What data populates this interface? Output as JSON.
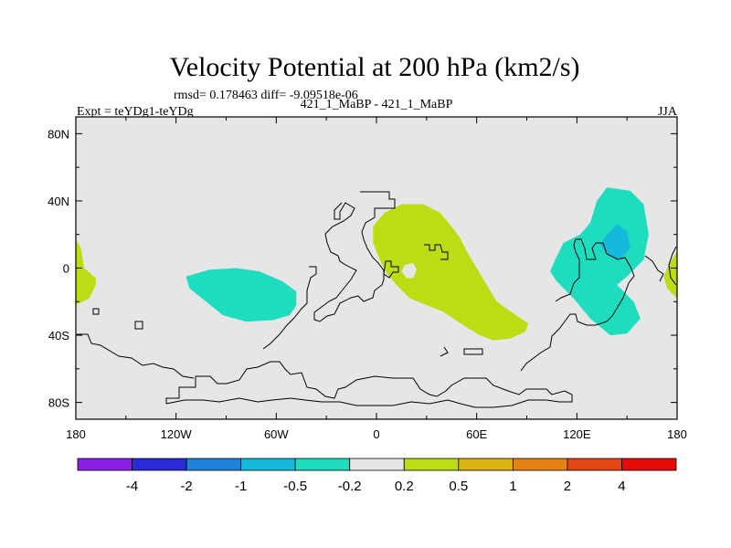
{
  "chart_data": {
    "type": "heatmap",
    "title": "Velocity Potential at 200 hPa (km2/s)",
    "stats": "rmsd= 0.178463 diff= -9.09518e-06",
    "left_label": "Expt = teYDg1-teYDg",
    "center_label": "421_1_MaBP - 421_1_MaBP",
    "right_label": "JJA",
    "xlim": [
      -180,
      180
    ],
    "ylim": [
      -90,
      90
    ],
    "xticks": [
      {
        "value": -180,
        "label": "180"
      },
      {
        "value": -120,
        "label": "120W"
      },
      {
        "value": -60,
        "label": "60W"
      },
      {
        "value": 0,
        "label": "0"
      },
      {
        "value": 60,
        "label": "60E"
      },
      {
        "value": 120,
        "label": "120E"
      },
      {
        "value": 180,
        "label": "180"
      }
    ],
    "yticks": [
      {
        "value": 80,
        "label": "80N"
      },
      {
        "value": 40,
        "label": "40N"
      },
      {
        "value": 0,
        "label": "0"
      },
      {
        "value": -40,
        "label": "40S"
      },
      {
        "value": -80,
        "label": "80S"
      }
    ],
    "colorbar": {
      "colors": [
        "#8c1ee6",
        "#2a2ad8",
        "#1e82dc",
        "#14b9dc",
        "#1edcbe",
        "#e6e6e6",
        "#bedc14",
        "#dcb414",
        "#e68214",
        "#e64614",
        "#e60a0a"
      ],
      "labels": [
        "-4",
        "-2",
        "-1",
        "-0.5",
        "-0.2",
        "0.2",
        "0.5",
        "1",
        "2",
        "4"
      ]
    },
    "regions": [
      {
        "name": "positive-anomaly-africa-indian-ocean",
        "level": "0.2 to 0.5",
        "color": "#bedc14",
        "polygon": [
          [
            -2,
            25
          ],
          [
            5,
            33
          ],
          [
            15,
            38
          ],
          [
            28,
            38
          ],
          [
            38,
            33
          ],
          [
            44,
            26
          ],
          [
            50,
            18
          ],
          [
            54,
            10
          ],
          [
            60,
            0
          ],
          [
            66,
            -10
          ],
          [
            72,
            -20
          ],
          [
            82,
            -27
          ],
          [
            91,
            -33
          ],
          [
            89,
            -38
          ],
          [
            80,
            -42
          ],
          [
            70,
            -43
          ],
          [
            62,
            -40
          ],
          [
            52,
            -34
          ],
          [
            40,
            -26
          ],
          [
            30,
            -22
          ],
          [
            20,
            -18
          ],
          [
            12,
            -10
          ],
          [
            6,
            -3
          ],
          [
            2,
            5
          ],
          [
            -2,
            15
          ]
        ]
      },
      {
        "name": "near-zero-hole-africa",
        "level": "-0.2 to 0.2",
        "color": "#e6e6e6",
        "polygon": [
          [
            17,
            2
          ],
          [
            22,
            3
          ],
          [
            24,
            -1
          ],
          [
            22,
            -6
          ],
          [
            18,
            -6
          ],
          [
            15,
            -2
          ]
        ]
      },
      {
        "name": "positive-anomaly-west-pacific",
        "level": "0.2 to 0.5",
        "color": "#bedc14",
        "polygon": [
          [
            -180,
            17
          ],
          [
            -177,
            12
          ],
          [
            -175,
            0
          ],
          [
            -168,
            -6
          ],
          [
            -168,
            -10
          ],
          [
            -172,
            -18
          ],
          [
            -180,
            -22
          ]
        ]
      },
      {
        "name": "positive-anomaly-east-pacific",
        "level": "0.2 to 0.5",
        "color": "#bedc14",
        "polygon": [
          [
            180,
            10
          ],
          [
            175,
            2
          ],
          [
            172,
            -5
          ],
          [
            174,
            -12
          ],
          [
            180,
            -18
          ]
        ]
      },
      {
        "name": "negative-anomaly-south-atlantic",
        "level": "-0.5 to -0.2",
        "color": "#1edcbe",
        "polygon": [
          [
            -114,
            -5
          ],
          [
            -100,
            -1
          ],
          [
            -84,
            0
          ],
          [
            -70,
            -2
          ],
          [
            -56,
            -8
          ],
          [
            -48,
            -14
          ],
          [
            -48,
            -22
          ],
          [
            -52,
            -28
          ],
          [
            -62,
            -31
          ],
          [
            -78,
            -32
          ],
          [
            -92,
            -28
          ],
          [
            -102,
            -20
          ],
          [
            -112,
            -12
          ]
        ]
      },
      {
        "name": "negative-anomaly-western-pacific",
        "level": "-0.5 to -0.2",
        "color": "#1edcbe",
        "polygon": [
          [
            107,
            5
          ],
          [
            112,
            15
          ],
          [
            122,
            20
          ],
          [
            128,
            27
          ],
          [
            132,
            40
          ],
          [
            138,
            48
          ],
          [
            152,
            46
          ],
          [
            160,
            38
          ],
          [
            163,
            20
          ],
          [
            160,
            5
          ],
          [
            150,
            -5
          ],
          [
            144,
            -10
          ],
          [
            154,
            -20
          ],
          [
            158,
            -30
          ],
          [
            150,
            -39
          ],
          [
            140,
            -40
          ],
          [
            128,
            -30
          ],
          [
            118,
            -18
          ],
          [
            108,
            -8
          ],
          [
            104,
            -2
          ]
        ]
      },
      {
        "name": "negative-anomaly-core",
        "level": "-1 to -0.5",
        "color": "#14b9dc",
        "polygon": [
          [
            138,
            20
          ],
          [
            144,
            26
          ],
          [
            150,
            22
          ],
          [
            152,
            12
          ],
          [
            146,
            5
          ],
          [
            138,
            8
          ],
          [
            134,
            14
          ]
        ]
      }
    ]
  }
}
